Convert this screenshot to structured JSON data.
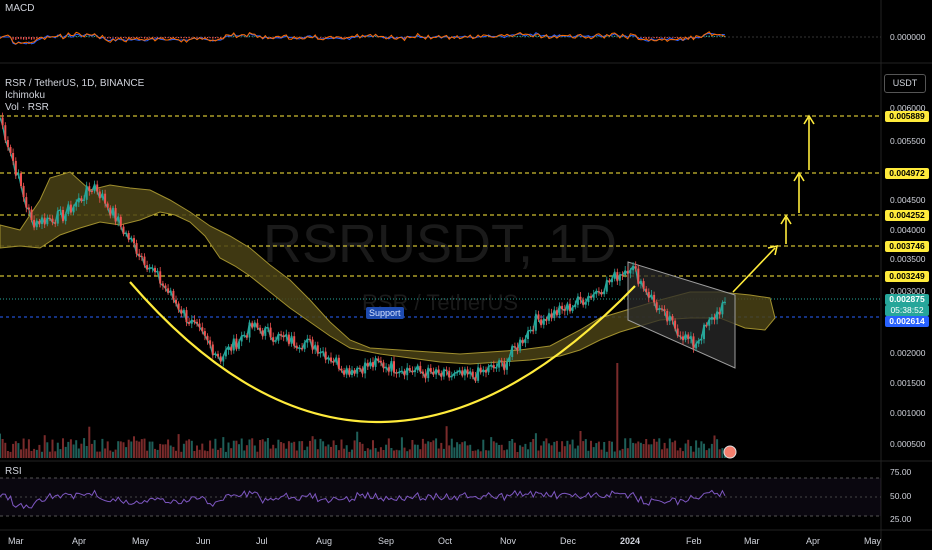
{
  "panels": {
    "macd_label": "MACD",
    "macd_value": "0.000000",
    "rsi_label": "RSI",
    "rsi_ticks": [
      "75.00",
      "50.00",
      "25.00"
    ]
  },
  "header": {
    "symbol": "RSR / TetherUS, 1D, BINANCE",
    "indicator1": "Ichimoku",
    "indicator2": "Vol · RSR",
    "quote_currency": "USDT"
  },
  "watermark": {
    "ticker": "RSRUSDT, 1D",
    "name": "RSR / TetherUS"
  },
  "support_label": "Support",
  "price_axis": {
    "ticks": [
      "0.006000",
      "0.005500",
      "0.004500",
      "0.004000",
      "0.003500",
      "0.003000",
      "0.002000",
      "0.001500",
      "0.001000",
      "0.000500"
    ],
    "levels": [
      {
        "value": "0.005889",
        "style": "level"
      },
      {
        "value": "0.004972",
        "style": "level"
      },
      {
        "value": "0.004252",
        "style": "level"
      },
      {
        "value": "0.003746",
        "style": "level"
      },
      {
        "value": "0.003249",
        "style": "level"
      }
    ],
    "current": "0.002875",
    "countdown": "05:38:52",
    "support_level": "0.002614",
    "colors": {
      "level": "#ffeb3b",
      "current": "#26a69a",
      "support": "#2962ff"
    }
  },
  "time_axis": {
    "months": [
      "Mar",
      "Apr",
      "May",
      "Jun",
      "Jul",
      "Aug",
      "Sep",
      "Oct",
      "Nov",
      "Dec",
      "2024",
      "Feb",
      "Mar",
      "Apr",
      "May"
    ]
  },
  "chart_data": {
    "type": "line",
    "title": "RSR / TetherUS, 1D, BINANCE",
    "ylim": [
      0.0005,
      0.0061
    ],
    "horizontal_levels": [
      0.005889,
      0.004972,
      0.004252,
      0.003746,
      0.003249,
      0.002614
    ],
    "series": [
      {
        "x": [
          "Mar",
          "Mar",
          "Apr",
          "Apr",
          "May",
          "May",
          "Jun",
          "Jun",
          "Jul",
          "Jul",
          "Aug",
          "Aug",
          "Sep",
          "Sep",
          "Oct",
          "Oct",
          "Nov",
          "Nov",
          "Dec",
          "Dec",
          "2024",
          "2024",
          "Feb",
          "Feb"
        ],
        "values": [
          0.0059,
          0.0042,
          0.0043,
          0.0048,
          0.004,
          0.0033,
          0.0026,
          0.002,
          0.0025,
          0.0023,
          0.0022,
          0.0018,
          0.0019,
          0.0018,
          0.0017,
          0.0017,
          0.0019,
          0.0026,
          0.0028,
          0.0031,
          0.0035,
          0.0027,
          0.0022,
          0.0029
        ]
      }
    ],
    "projection": [
      0.0029,
      0.003746,
      0.004252,
      0.004972,
      0.005889
    ]
  }
}
